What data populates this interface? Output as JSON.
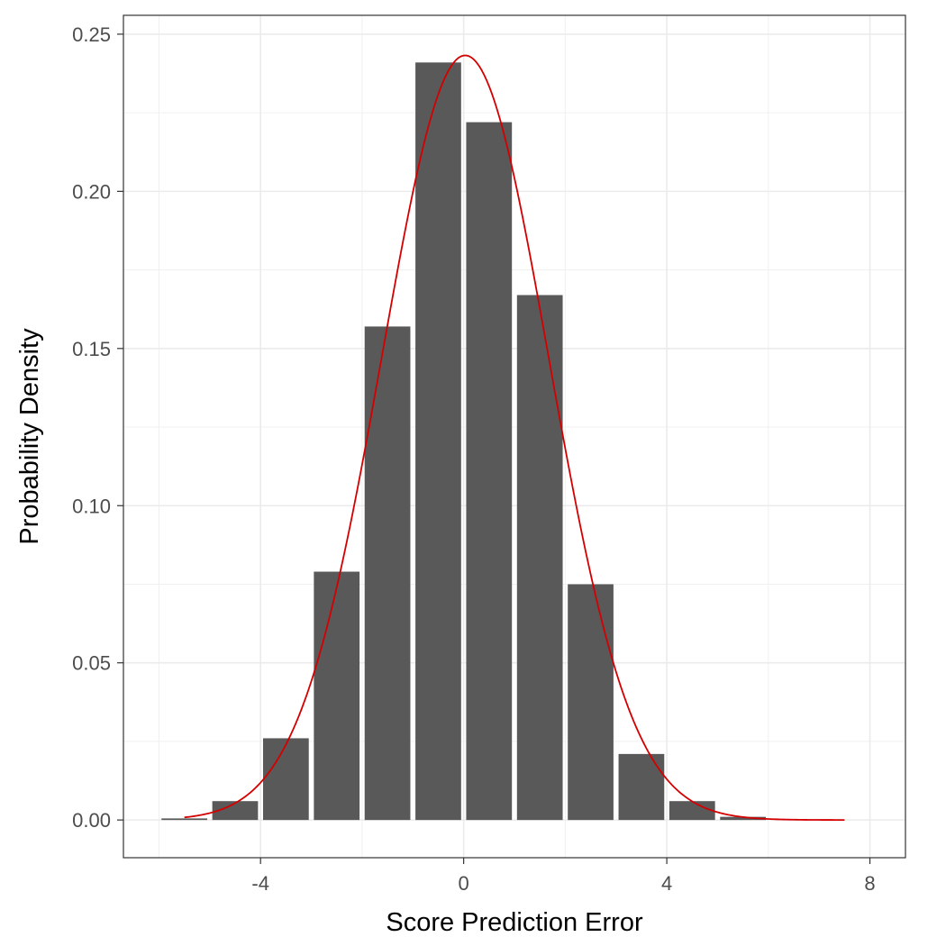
{
  "chart_data": {
    "type": "bar",
    "xlabel": "Score Prediction Error",
    "ylabel": "Probability Density",
    "xlim": [
      -6.7,
      8.7
    ],
    "ylim": [
      -0.012,
      0.256
    ],
    "x_ticks": [
      -4,
      0,
      4,
      8
    ],
    "x_tick_labels": [
      "-4",
      "0",
      "4",
      "8"
    ],
    "y_ticks": [
      0.0,
      0.05,
      0.1,
      0.15,
      0.2,
      0.25
    ],
    "y_tick_labels": [
      "0.00",
      "0.05",
      "0.10",
      "0.15",
      "0.20",
      "0.25"
    ],
    "grid": true,
    "bar_width": 0.9,
    "bar_color": "#595959",
    "curve_color": "#d40000",
    "bars": [
      {
        "x": -5.5,
        "y": 0.0005
      },
      {
        "x": -4.5,
        "y": 0.006
      },
      {
        "x": -3.5,
        "y": 0.026
      },
      {
        "x": -2.5,
        "y": 0.079
      },
      {
        "x": -1.5,
        "y": 0.157
      },
      {
        "x": -0.5,
        "y": 0.241
      },
      {
        "x": 0.5,
        "y": 0.222
      },
      {
        "x": 1.5,
        "y": 0.167
      },
      {
        "x": 2.5,
        "y": 0.075
      },
      {
        "x": 3.5,
        "y": 0.021
      },
      {
        "x": 4.5,
        "y": 0.006
      },
      {
        "x": 5.5,
        "y": 0.001
      }
    ],
    "curve": {
      "type": "normal_density",
      "mean": 0.03,
      "sd": 1.64,
      "x_range": [
        -5.5,
        7.5
      ]
    }
  }
}
